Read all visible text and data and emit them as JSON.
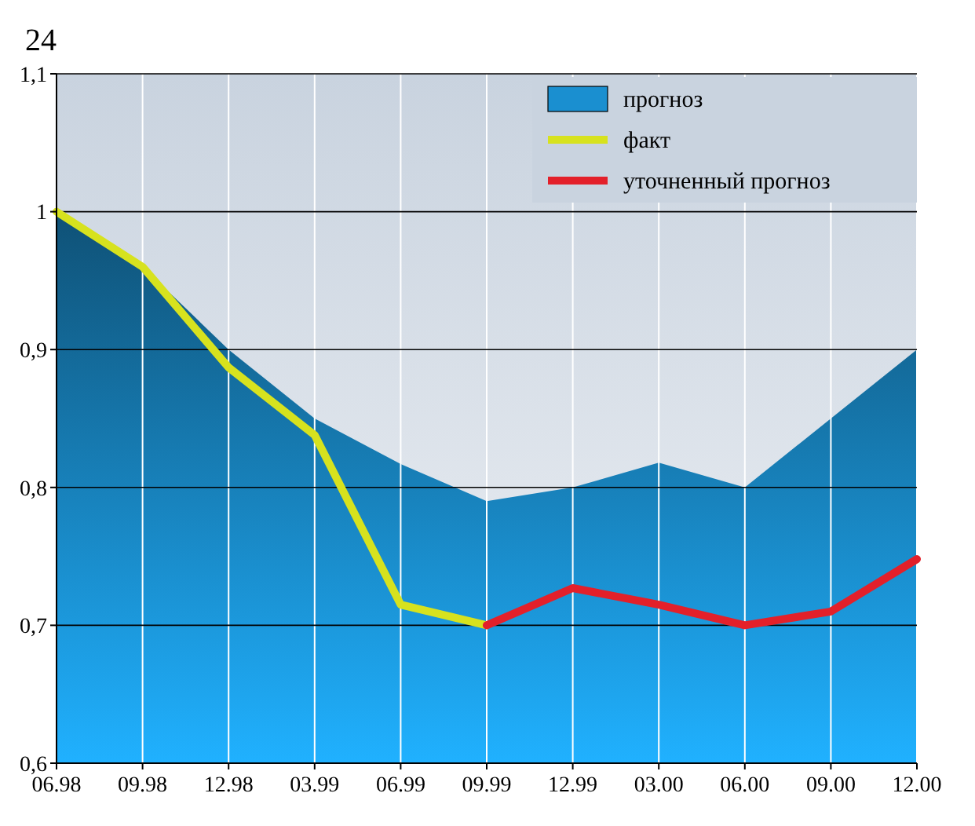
{
  "chart_data": {
    "type": "line",
    "annotations": [
      "24"
    ],
    "categories": [
      "06.98",
      "09.98",
      "12.98",
      "03.99",
      "06.99",
      "09.99",
      "12.99",
      "03.00",
      "06.00",
      "09.00",
      "12.00"
    ],
    "series": [
      {
        "name": "прогноз",
        "type": "area",
        "color": "#1a8fd0",
        "values": [
          1.0,
          0.96,
          0.9,
          0.85,
          0.817,
          0.79,
          0.8,
          0.818,
          0.8,
          0.85,
          0.9
        ]
      },
      {
        "name": "факт",
        "color": "#d7e21e",
        "values": [
          1.0,
          0.96,
          0.887,
          0.838,
          0.715,
          0.7,
          null,
          null,
          null,
          null,
          null
        ]
      },
      {
        "name": "уточненный прогноз",
        "color": "#e3202a",
        "values": [
          null,
          null,
          null,
          null,
          null,
          0.7,
          0.727,
          0.715,
          0.7,
          0.71,
          0.748
        ]
      }
    ],
    "ylim": [
      0.6,
      1.1
    ],
    "yticks": [
      {
        "value": 0.6,
        "label": "0,6"
      },
      {
        "value": 0.7,
        "label": "0,7"
      },
      {
        "value": 0.8,
        "label": "0,8"
      },
      {
        "value": 0.9,
        "label": "0,9"
      },
      1,
      {
        "value": 1.1,
        "label": "1,1"
      }
    ],
    "grid": true,
    "legend": "top right",
    "line_style": "solid",
    "marker": "none"
  }
}
